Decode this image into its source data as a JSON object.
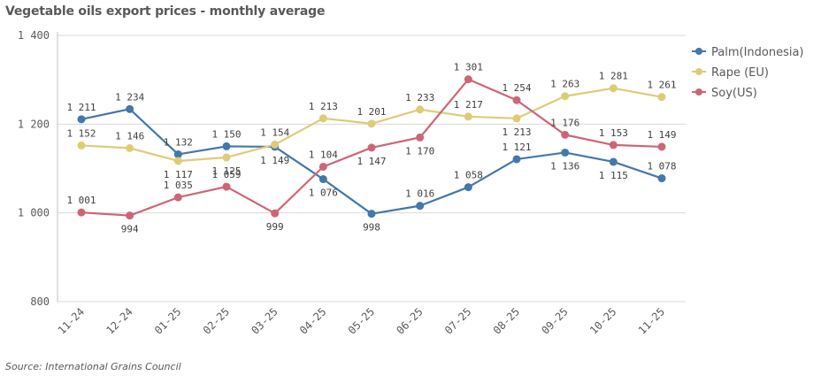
{
  "title": "Vegetable oils export prices - monthly average",
  "source": "Source: International Grains Council",
  "chart_data": {
    "type": "line",
    "title": "Vegetable oils export prices - monthly average",
    "categories": [
      "11-24",
      "12-24",
      "01-25",
      "02-25",
      "03-25",
      "04-25",
      "05-25",
      "06-25",
      "07-25",
      "08-25",
      "09-25",
      "10-25",
      "11-25"
    ],
    "ylim": [
      800,
      1400
    ],
    "yticks": [
      800,
      1000,
      1200,
      1400
    ],
    "ytick_labels": [
      "800",
      "1 000",
      "1 200",
      "1 400"
    ],
    "grid": true,
    "legend_position": "right",
    "series": [
      {
        "name": "Palm(Indonesia)",
        "color": "#4477aa",
        "values": [
          1211,
          1234,
          1132,
          1150,
          1149,
          1076,
          998,
          1016,
          1058,
          1121,
          1136,
          1115,
          1078
        ],
        "labels": [
          "1 211",
          "1 234",
          "1 132",
          "1 150",
          "1 149",
          "1 076",
          "998",
          "1 016",
          "1 058",
          "1 121",
          "1 136",
          "1 115",
          "1 078"
        ]
      },
      {
        "name": "Rape (EU)",
        "color": "#ddcc77",
        "values": [
          1152,
          1146,
          1117,
          1125,
          1154,
          1213,
          1201,
          1233,
          1217,
          1213,
          1263,
          1281,
          1261
        ],
        "labels": [
          "1 152",
          "1 146",
          "1 117",
          "1 125",
          "1 154",
          "1 213",
          "1 201",
          "1 233",
          "1 217",
          "1 213",
          "1 263",
          "1 281",
          "1 261"
        ]
      },
      {
        "name": "Soy(US)",
        "color": "#cc6677",
        "values": [
          1001,
          994,
          1035,
          1059,
          999,
          1104,
          1147,
          1170,
          1301,
          1254,
          1176,
          1153,
          1149
        ],
        "labels": [
          "1 001",
          "994",
          "1 035",
          "1 059",
          "999",
          "1 104",
          "1 147",
          "1 170",
          "1 301",
          "1 254",
          "1 176",
          "1 153",
          "1 149"
        ]
      }
    ]
  }
}
